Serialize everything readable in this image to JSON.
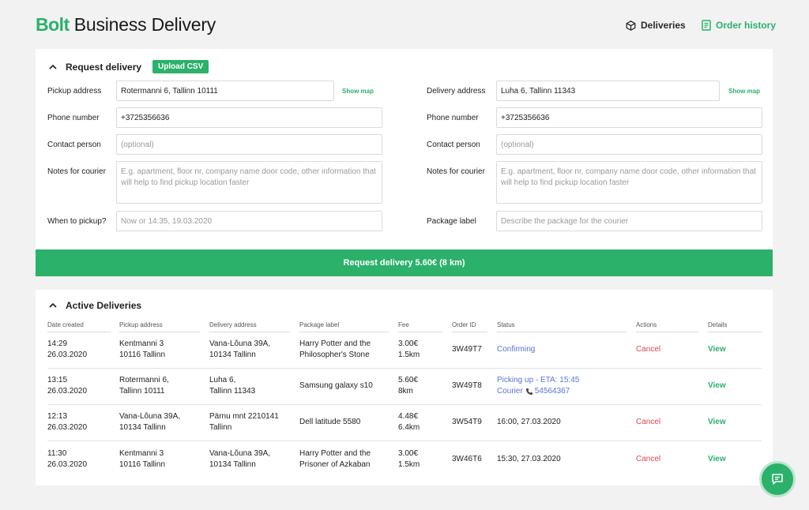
{
  "header": {
    "logo": "Bolt",
    "title": "Business Delivery",
    "nav": {
      "deliveries": "Deliveries",
      "order_history": "Order history"
    }
  },
  "request": {
    "title": "Request delivery",
    "upload_csv": "Upload CSV",
    "show_map": "Show map",
    "pickup": {
      "address_label": "Pickup address",
      "address_value": "Rotermanni 6, Tallinn 10111",
      "phone_label": "Phone number",
      "phone_value": "+3725356636",
      "contact_label": "Contact person",
      "contact_placeholder": "(optional)",
      "notes_label": "Notes for courier",
      "notes_placeholder": "E.g. apartment, floor nr, company name  door code, other information that will help to find pickup location faster",
      "when_label": "When to pickup?",
      "when_placeholder": "Now or 14:35, 19.03.2020"
    },
    "delivery": {
      "address_label": "Delivery address",
      "address_value": "Luha 6, Tallinn 11343",
      "phone_label": "Phone number",
      "phone_value": "+3725356636",
      "contact_label": "Contact person",
      "contact_placeholder": "(optional)",
      "notes_label": "Notes for courier",
      "notes_placeholder": "E.g. apartment, floor nr, company name  door code, other information that will help to find pickup location faster",
      "package_label": "Package label",
      "package_placeholder": "Describe the package for the courier"
    },
    "submit_label": "Request delivery 5.60€ (8 km)"
  },
  "active": {
    "title": "Active Deliveries",
    "columns": [
      "Date created",
      "Pickup address",
      "Delivery address",
      "Package label",
      "Fee",
      "Order ID",
      "Status",
      "Actions",
      "Details"
    ],
    "rows": [
      {
        "time": "14:29",
        "date": "26.03.2020",
        "pickup1": "Kentmanni 3",
        "pickup2": "10116 Tallinn",
        "delivery1": "Vana-Lõuna 39A,",
        "delivery2": "10134 Tallinn",
        "package1": "Harry Potter and the",
        "package2": "Philosopher's Stone",
        "fee": "3.00€",
        "distance": "1.5km",
        "order_id": "3W49T7",
        "status": "Confirming",
        "status2": "",
        "courier_label": "",
        "courier_phone": "",
        "action": "Cancel",
        "details": "View"
      },
      {
        "time": "13:15",
        "date": "26.03.2020",
        "pickup1": "Rotermanni 6,",
        "pickup2": "Tallinn 10111",
        "delivery1": "Luha 6,",
        "delivery2": "Tallinn 11343",
        "package1": "Samsung galaxy s10",
        "package2": "",
        "fee": "5.60€",
        "distance": "8km",
        "order_id": "3W49T8",
        "status": "Picking up - ETA: 15:45",
        "status2": "",
        "courier_label": "Courier",
        "courier_phone": "54564367",
        "action": "",
        "details": "View"
      },
      {
        "time": "12:13",
        "date": "26.03.2020",
        "pickup1": "Vana-Lõuna 39A,",
        "pickup2": "10134 Tallinn",
        "delivery1": "Pärnu mnt 2210141",
        "delivery2": "Tallinn",
        "package1": "Dell latitude 5580",
        "package2": "",
        "fee": "4.48€",
        "distance": "6.4km",
        "order_id": "3W54T9",
        "status": "16:00, 27.03.2020",
        "status2": "",
        "courier_label": "",
        "courier_phone": "",
        "action": "Cancel",
        "details": "View"
      },
      {
        "time": "11:30",
        "date": "26.03.2020",
        "pickup1": "Kentmanni 3",
        "pickup2": "10116 Tallinn",
        "delivery1": "Vana-Lõuna 39A,",
        "delivery2": "10134 Tallinn",
        "package1": "Harry Potter and the",
        "package2": "Prisoner of Azkaban",
        "fee": "3.00€",
        "distance": "1.5km",
        "order_id": "3W46T6",
        "status": "15:30, 27.03.2020",
        "status2": "",
        "courier_label": "",
        "courier_phone": "",
        "action": "Cancel",
        "details": "View"
      }
    ]
  },
  "colors": {
    "accent": "#2bb16a",
    "status_blue": "#5a73d6",
    "cancel_red": "#e0454e",
    "background": "#f2f2f2"
  },
  "icons": {
    "deliveries": "box-icon",
    "order_history": "receipt-icon",
    "chat": "chat-icon",
    "collapse": "chevron-up-icon"
  }
}
